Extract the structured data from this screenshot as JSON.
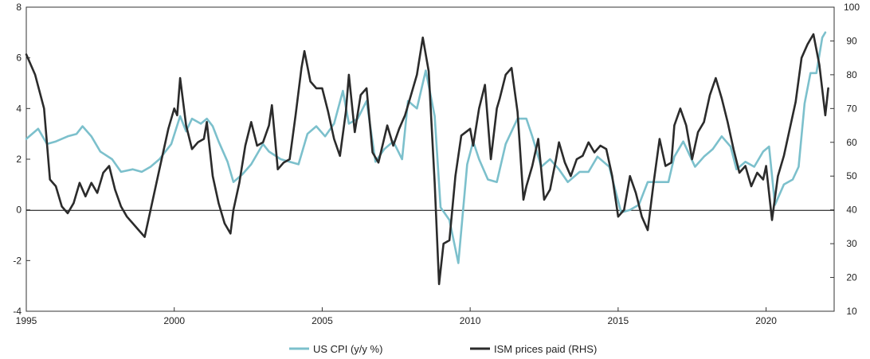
{
  "chart_data": {
    "type": "line",
    "title": "",
    "xlabel": "",
    "ylabel_left": "",
    "ylabel_right": "",
    "xlim": [
      1995,
      2022.3
    ],
    "ylim_left": [
      -4,
      8
    ],
    "ylim_right": [
      10,
      100
    ],
    "x_ticks": [
      "1995",
      "2000",
      "2005",
      "2010",
      "2015",
      "2020"
    ],
    "y_ticks_left": [
      "-4",
      "-2",
      "0",
      "2",
      "4",
      "6",
      "8"
    ],
    "y_ticks_right": [
      "10",
      "20",
      "30",
      "40",
      "50",
      "60",
      "70",
      "80",
      "90",
      "100"
    ],
    "zero_line": true,
    "grid": false,
    "legend_position": "bottom",
    "colors": {
      "cpi": "#7cc0cc",
      "ism": "#2b2b2b"
    },
    "series": [
      {
        "name": "US CPI (y/y %)",
        "axis": "left",
        "color": "#7cc0cc",
        "points": [
          [
            1995.0,
            2.8
          ],
          [
            1995.4,
            3.2
          ],
          [
            1995.7,
            2.6
          ],
          [
            1996.0,
            2.7
          ],
          [
            1996.4,
            2.9
          ],
          [
            1996.7,
            3.0
          ],
          [
            1996.9,
            3.3
          ],
          [
            1997.2,
            2.9
          ],
          [
            1997.5,
            2.3
          ],
          [
            1997.9,
            2.0
          ],
          [
            1998.2,
            1.5
          ],
          [
            1998.6,
            1.6
          ],
          [
            1998.9,
            1.5
          ],
          [
            1999.2,
            1.7
          ],
          [
            1999.5,
            2.0
          ],
          [
            1999.9,
            2.6
          ],
          [
            2000.2,
            3.7
          ],
          [
            2000.4,
            3.1
          ],
          [
            2000.6,
            3.6
          ],
          [
            2000.9,
            3.4
          ],
          [
            2001.1,
            3.6
          ],
          [
            2001.3,
            3.3
          ],
          [
            2001.5,
            2.7
          ],
          [
            2001.8,
            1.9
          ],
          [
            2002.0,
            1.1
          ],
          [
            2002.3,
            1.4
          ],
          [
            2002.6,
            1.8
          ],
          [
            2003.0,
            2.6
          ],
          [
            2003.2,
            2.3
          ],
          [
            2003.6,
            2.0
          ],
          [
            2003.9,
            1.9
          ],
          [
            2004.2,
            1.8
          ],
          [
            2004.5,
            3.0
          ],
          [
            2004.8,
            3.3
          ],
          [
            2005.1,
            2.9
          ],
          [
            2005.4,
            3.4
          ],
          [
            2005.7,
            4.7
          ],
          [
            2005.9,
            3.4
          ],
          [
            2006.2,
            3.6
          ],
          [
            2006.5,
            4.3
          ],
          [
            2006.8,
            1.9
          ],
          [
            2007.1,
            2.4
          ],
          [
            2007.4,
            2.7
          ],
          [
            2007.7,
            2.0
          ],
          [
            2007.9,
            4.3
          ],
          [
            2008.2,
            4.0
          ],
          [
            2008.5,
            5.5
          ],
          [
            2008.8,
            3.7
          ],
          [
            2009.0,
            0.1
          ],
          [
            2009.3,
            -0.4
          ],
          [
            2009.6,
            -2.1
          ],
          [
            2009.9,
            1.8
          ],
          [
            2010.1,
            2.7
          ],
          [
            2010.3,
            2.0
          ],
          [
            2010.6,
            1.2
          ],
          [
            2010.9,
            1.1
          ],
          [
            2011.2,
            2.6
          ],
          [
            2011.6,
            3.6
          ],
          [
            2011.9,
            3.6
          ],
          [
            2012.1,
            2.9
          ],
          [
            2012.4,
            1.7
          ],
          [
            2012.7,
            2.0
          ],
          [
            2013.0,
            1.6
          ],
          [
            2013.3,
            1.1
          ],
          [
            2013.7,
            1.5
          ],
          [
            2014.0,
            1.5
          ],
          [
            2014.3,
            2.1
          ],
          [
            2014.7,
            1.7
          ],
          [
            2014.9,
            0.8
          ],
          [
            2015.1,
            -0.1
          ],
          [
            2015.4,
            0.0
          ],
          [
            2015.7,
            0.2
          ],
          [
            2016.0,
            1.1
          ],
          [
            2016.3,
            1.1
          ],
          [
            2016.7,
            1.1
          ],
          [
            2016.9,
            2.1
          ],
          [
            2017.2,
            2.7
          ],
          [
            2017.6,
            1.7
          ],
          [
            2017.9,
            2.1
          ],
          [
            2018.2,
            2.4
          ],
          [
            2018.5,
            2.9
          ],
          [
            2018.8,
            2.5
          ],
          [
            2019.0,
            1.6
          ],
          [
            2019.3,
            1.9
          ],
          [
            2019.6,
            1.7
          ],
          [
            2019.9,
            2.3
          ],
          [
            2020.1,
            2.5
          ],
          [
            2020.3,
            0.2
          ],
          [
            2020.6,
            1.0
          ],
          [
            2020.9,
            1.2
          ],
          [
            2021.1,
            1.7
          ],
          [
            2021.3,
            4.2
          ],
          [
            2021.5,
            5.4
          ],
          [
            2021.7,
            5.4
          ],
          [
            2021.9,
            6.8
          ],
          [
            2022.0,
            7.0
          ]
        ]
      },
      {
        "name": "ISM prices paid (RHS)",
        "axis": "right",
        "color": "#2b2b2b",
        "points": [
          [
            1995.0,
            86
          ],
          [
            1995.3,
            80
          ],
          [
            1995.6,
            70
          ],
          [
            1995.8,
            49
          ],
          [
            1996.0,
            47
          ],
          [
            1996.2,
            41
          ],
          [
            1996.4,
            39
          ],
          [
            1996.6,
            42
          ],
          [
            1996.8,
            48
          ],
          [
            1997.0,
            44
          ],
          [
            1997.2,
            48
          ],
          [
            1997.4,
            45
          ],
          [
            1997.6,
            51
          ],
          [
            1997.8,
            53
          ],
          [
            1998.0,
            46
          ],
          [
            1998.2,
            41
          ],
          [
            1998.4,
            38
          ],
          [
            1998.6,
            36
          ],
          [
            1998.8,
            34
          ],
          [
            1999.0,
            32
          ],
          [
            1999.2,
            40
          ],
          [
            1999.5,
            52
          ],
          [
            1999.8,
            64
          ],
          [
            2000.0,
            70
          ],
          [
            2000.1,
            68
          ],
          [
            2000.2,
            79
          ],
          [
            2000.4,
            65
          ],
          [
            2000.6,
            58
          ],
          [
            2000.8,
            60
          ],
          [
            2001.0,
            61
          ],
          [
            2001.1,
            66
          ],
          [
            2001.3,
            50
          ],
          [
            2001.5,
            42
          ],
          [
            2001.7,
            36
          ],
          [
            2001.9,
            33
          ],
          [
            2002.0,
            40
          ],
          [
            2002.2,
            48
          ],
          [
            2002.4,
            59
          ],
          [
            2002.6,
            66
          ],
          [
            2002.8,
            59
          ],
          [
            2003.0,
            60
          ],
          [
            2003.2,
            65
          ],
          [
            2003.3,
            71
          ],
          [
            2003.5,
            52
          ],
          [
            2003.7,
            54
          ],
          [
            2003.9,
            55
          ],
          [
            2004.1,
            68
          ],
          [
            2004.3,
            82
          ],
          [
            2004.4,
            87
          ],
          [
            2004.6,
            78
          ],
          [
            2004.8,
            76
          ],
          [
            2005.0,
            76
          ],
          [
            2005.2,
            69
          ],
          [
            2005.4,
            61
          ],
          [
            2005.6,
            56
          ],
          [
            2005.8,
            69
          ],
          [
            2005.9,
            80
          ],
          [
            2006.1,
            63
          ],
          [
            2006.3,
            74
          ],
          [
            2006.5,
            76
          ],
          [
            2006.7,
            57
          ],
          [
            2006.9,
            54
          ],
          [
            2007.2,
            65
          ],
          [
            2007.4,
            59
          ],
          [
            2007.6,
            64
          ],
          [
            2007.8,
            68
          ],
          [
            2008.0,
            74
          ],
          [
            2008.2,
            80
          ],
          [
            2008.4,
            91
          ],
          [
            2008.6,
            81
          ],
          [
            2008.8,
            48
          ],
          [
            2008.95,
            18
          ],
          [
            2009.1,
            30
          ],
          [
            2009.3,
            31
          ],
          [
            2009.5,
            50
          ],
          [
            2009.7,
            62
          ],
          [
            2010.0,
            64
          ],
          [
            2010.1,
            59
          ],
          [
            2010.3,
            70
          ],
          [
            2010.5,
            77
          ],
          [
            2010.7,
            55
          ],
          [
            2010.9,
            70
          ],
          [
            2011.0,
            73
          ],
          [
            2011.2,
            80
          ],
          [
            2011.4,
            82
          ],
          [
            2011.6,
            69
          ],
          [
            2011.8,
            43
          ],
          [
            2011.9,
            47
          ],
          [
            2012.1,
            53
          ],
          [
            2012.3,
            61
          ],
          [
            2012.5,
            43
          ],
          [
            2012.7,
            46
          ],
          [
            2012.9,
            55
          ],
          [
            2013.0,
            60
          ],
          [
            2013.2,
            54
          ],
          [
            2013.4,
            50
          ],
          [
            2013.6,
            55
          ],
          [
            2013.8,
            56
          ],
          [
            2014.0,
            60
          ],
          [
            2014.2,
            57
          ],
          [
            2014.4,
            59
          ],
          [
            2014.6,
            58
          ],
          [
            2014.8,
            50
          ],
          [
            2015.0,
            38
          ],
          [
            2015.2,
            40
          ],
          [
            2015.4,
            50
          ],
          [
            2015.6,
            45
          ],
          [
            2015.8,
            38
          ],
          [
            2016.0,
            34
          ],
          [
            2016.2,
            48
          ],
          [
            2016.4,
            61
          ],
          [
            2016.6,
            53
          ],
          [
            2016.8,
            54
          ],
          [
            2016.9,
            65
          ],
          [
            2017.1,
            70
          ],
          [
            2017.3,
            65
          ],
          [
            2017.5,
            55
          ],
          [
            2017.7,
            63
          ],
          [
            2017.9,
            66
          ],
          [
            2018.1,
            74
          ],
          [
            2018.3,
            79
          ],
          [
            2018.5,
            73
          ],
          [
            2018.7,
            66
          ],
          [
            2018.9,
            58
          ],
          [
            2019.1,
            51
          ],
          [
            2019.3,
            53
          ],
          [
            2019.5,
            47
          ],
          [
            2019.7,
            51
          ],
          [
            2019.9,
            49
          ],
          [
            2020.0,
            53
          ],
          [
            2020.2,
            37
          ],
          [
            2020.4,
            50
          ],
          [
            2020.6,
            56
          ],
          [
            2020.8,
            64
          ],
          [
            2021.0,
            72
          ],
          [
            2021.2,
            85
          ],
          [
            2021.4,
            89
          ],
          [
            2021.6,
            92
          ],
          [
            2021.8,
            83
          ],
          [
            2022.0,
            68
          ],
          [
            2022.1,
            76
          ]
        ]
      }
    ]
  }
}
